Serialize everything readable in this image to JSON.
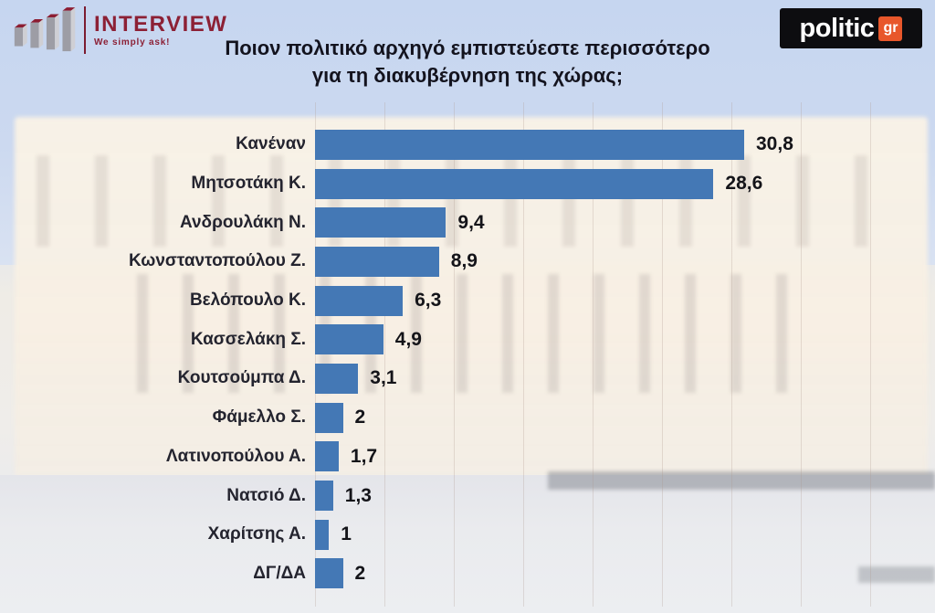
{
  "header": {
    "interview": {
      "name": "INTERVIEW",
      "tagline": "We simply ask!",
      "brand_color": "#8c2035",
      "icon": "ascending-3d-bars"
    },
    "politic": {
      "text": "politic",
      "badge": "gr",
      "background_color": "#0d0d10",
      "badge_color": "#e8572b"
    }
  },
  "title": {
    "line1": "Ποιον πολιτικό αρχηγό εμπιστεύεστε περισσότερο",
    "line2": "για τη διακυβέρνηση της χώρας;"
  },
  "chart_data": {
    "type": "bar",
    "orientation": "horizontal",
    "title": "Ποιον πολιτικό αρχηγό εμπιστεύεστε περισσότερο για τη διακυβέρνηση της χώρας;",
    "categories": [
      "Κανέναν",
      "Μητσοτάκη Κ.",
      "Ανδρουλάκη Ν.",
      "Κωνσταντοπούλου Ζ.",
      "Βελόπουλο Κ.",
      "Κασσελάκη Σ.",
      "Κουτσούμπα Δ.",
      "Φάμελλο Σ.",
      "Λατινοπούλου Α.",
      "Νατσιό Δ.",
      "Χαρίτσης Α.",
      "ΔΓ/ΔΑ"
    ],
    "values": [
      30.8,
      28.6,
      9.4,
      8.9,
      6.3,
      4.9,
      3.1,
      2,
      1.7,
      1.3,
      1,
      2
    ],
    "value_labels": [
      "30,8",
      "28,6",
      "9,4",
      "8,9",
      "6,3",
      "4,9",
      "3,1",
      "2",
      "1,7",
      "1,3",
      "1",
      "2"
    ],
    "bar_color": "#4478b5",
    "xlabel": "",
    "ylabel": "",
    "xlim": [
      0,
      33
    ],
    "grid": "faint vertical gridlines every 5 units",
    "legend": "none",
    "value_label_position": "right of bar",
    "background": "washed-out photo of the Hellenic Parliament building"
  }
}
